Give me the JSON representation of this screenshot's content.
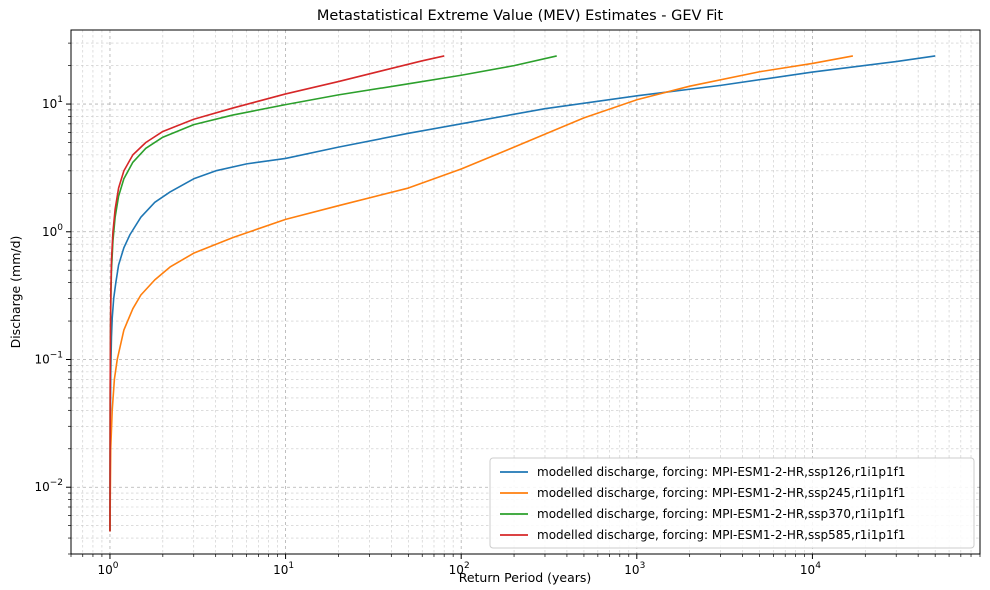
{
  "chart_data": {
    "type": "line",
    "title": "Metastatistical Extreme Value (MEV) Estimates - GEV Fit",
    "xlabel": "Return Period (years)",
    "ylabel": "Discharge (mm/d)",
    "xscale": "log",
    "yscale": "log",
    "xlim": [
      0.6,
      90000
    ],
    "ylim": [
      0.003,
      38
    ],
    "grid": true,
    "legend_position": "lower-right",
    "x_ticks": [
      {
        "value": 1,
        "base": "10",
        "exp": "0"
      },
      {
        "value": 10,
        "base": "10",
        "exp": "1"
      },
      {
        "value": 100,
        "base": "10",
        "exp": "2"
      },
      {
        "value": 1000,
        "base": "10",
        "exp": "3"
      },
      {
        "value": 10000,
        "base": "10",
        "exp": "4"
      }
    ],
    "y_ticks": [
      {
        "value": 0.01,
        "base": "10",
        "exp": "−2"
      },
      {
        "value": 0.1,
        "base": "10",
        "exp": "−1"
      },
      {
        "value": 1,
        "base": "10",
        "exp": "0"
      },
      {
        "value": 10,
        "base": "10",
        "exp": "1"
      }
    ],
    "series": [
      {
        "name": "modelled discharge, forcing: MPI-ESM1-2-HR,ssp126,r1i1p1f1",
        "color": "#1f77b4",
        "x": [
          1.0,
          1.005,
          1.01,
          1.02,
          1.03,
          1.05,
          1.08,
          1.12,
          1.2,
          1.3,
          1.5,
          1.8,
          2.2,
          3,
          4,
          6,
          10,
          20,
          50,
          100,
          300,
          1000,
          3000,
          10000,
          30000,
          50000
        ],
        "y": [
          0.0045,
          0.03,
          0.08,
          0.15,
          0.21,
          0.3,
          0.4,
          0.55,
          0.75,
          0.95,
          1.3,
          1.7,
          2.05,
          2.6,
          3.0,
          3.4,
          3.75,
          4.6,
          5.9,
          7.0,
          9.2,
          11.6,
          14.0,
          17.8,
          21.5,
          23.8
        ]
      },
      {
        "name": "modelled discharge, forcing: MPI-ESM1-2-HR,ssp245,r1i1p1f1",
        "color": "#ff7f0e",
        "x": [
          1.0,
          1.01,
          1.03,
          1.06,
          1.1,
          1.2,
          1.35,
          1.5,
          1.8,
          2.2,
          3,
          5,
          10,
          20,
          50,
          100,
          200,
          500,
          1000,
          2000,
          5000,
          10000,
          17000
        ],
        "y": [
          0.0045,
          0.02,
          0.04,
          0.07,
          0.1,
          0.17,
          0.25,
          0.32,
          0.42,
          0.53,
          0.68,
          0.9,
          1.25,
          1.6,
          2.2,
          3.1,
          4.6,
          7.8,
          10.8,
          13.8,
          17.9,
          20.8,
          23.8
        ]
      },
      {
        "name": "modelled discharge, forcing: MPI-ESM1-2-HR,ssp370,r1i1p1f1",
        "color": "#2ca02c",
        "x": [
          1.0,
          1.003,
          1.007,
          1.012,
          1.02,
          1.04,
          1.07,
          1.12,
          1.2,
          1.35,
          1.6,
          2,
          3,
          5,
          10,
          20,
          50,
          100,
          200,
          350
        ],
        "y": [
          0.0045,
          0.05,
          0.15,
          0.3,
          0.5,
          0.85,
          1.3,
          1.9,
          2.6,
          3.5,
          4.5,
          5.5,
          6.9,
          8.2,
          9.9,
          11.8,
          14.4,
          16.8,
          20.0,
          23.8
        ]
      },
      {
        "name": "modelled discharge, forcing: MPI-ESM1-2-HR,ssp585,r1i1p1f1",
        "color": "#d62728",
        "x": [
          1.0,
          1.003,
          1.007,
          1.012,
          1.02,
          1.04,
          1.07,
          1.12,
          1.2,
          1.35,
          1.6,
          2,
          3,
          5,
          10,
          20,
          40,
          60,
          80
        ],
        "y": [
          0.0045,
          0.06,
          0.18,
          0.35,
          0.6,
          1.0,
          1.5,
          2.2,
          3.0,
          4.0,
          5.0,
          6.1,
          7.6,
          9.3,
          12.0,
          15.0,
          19.0,
          21.8,
          23.8
        ]
      }
    ]
  }
}
